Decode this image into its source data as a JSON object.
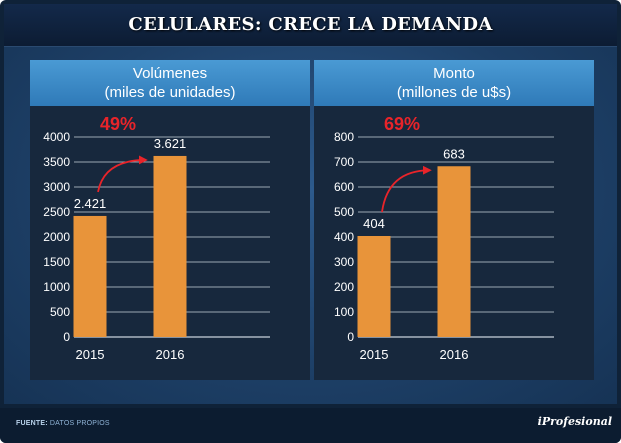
{
  "title": "CELULARES: CRECE LA DEMANDA",
  "colors": {
    "bar": "#e8943a",
    "highlight": "#e8242a",
    "grid": "#c9d2dc",
    "text": "#ffffff"
  },
  "chart_data": [
    {
      "type": "bar",
      "title_line1": "Volúmenes",
      "title_line2": "(miles de unidades)",
      "categories": [
        "2015",
        "2016"
      ],
      "values": [
        2421,
        3621
      ],
      "value_labels": [
        "2.421",
        "3.621"
      ],
      "ylim": [
        0,
        4000
      ],
      "yticks": [
        0,
        500,
        1000,
        1500,
        2000,
        2500,
        3000,
        3500,
        4000
      ],
      "growth": "49%"
    },
    {
      "type": "bar",
      "title_line1": "Monto",
      "title_line2": "(millones de u$s)",
      "categories": [
        "2015",
        "2016"
      ],
      "values": [
        404,
        683
      ],
      "value_labels": [
        "404",
        "683"
      ],
      "ylim": [
        0,
        800
      ],
      "yticks": [
        0,
        100,
        200,
        300,
        400,
        500,
        600,
        700,
        800
      ],
      "growth": "69%"
    }
  ],
  "footer": {
    "source_label": "FUENTE:",
    "source_text": "DATOS PROPIOS",
    "brand": "iProfesional"
  }
}
